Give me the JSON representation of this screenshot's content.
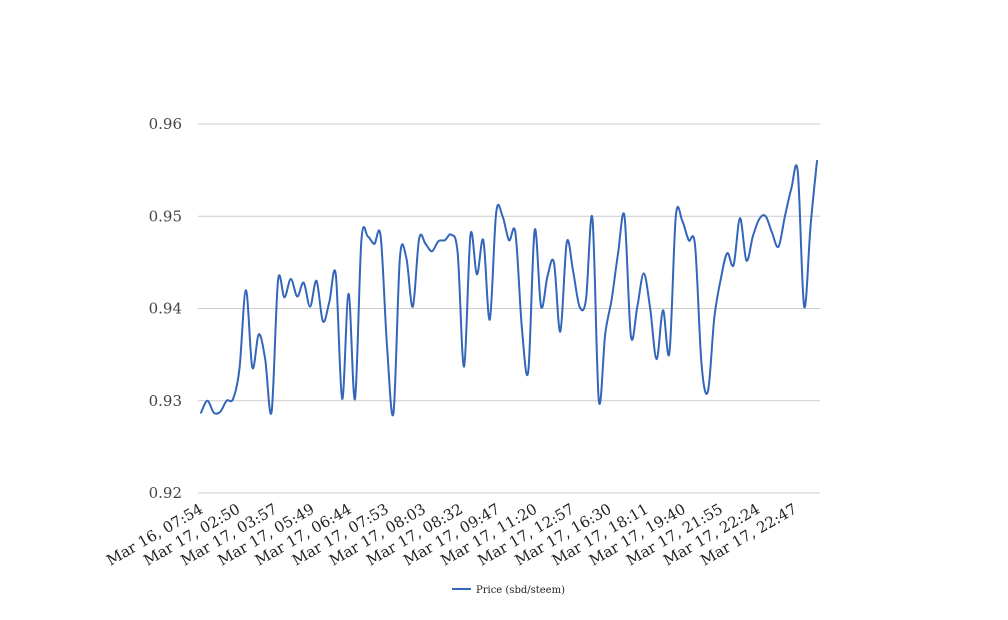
{
  "chart_data": {
    "type": "line",
    "title": "",
    "xlabel": "",
    "ylabel": "",
    "ylim": [
      0.92,
      0.96
    ],
    "yticks": [
      "0.92",
      "0.93",
      "0.94",
      "0.95",
      "0.96"
    ],
    "xtick_labels": [
      "Mar 16, 07:54",
      "Mar 17, 02:50",
      "Mar 17, 03:57",
      "Mar 17, 05:49",
      "Mar 17, 06:44",
      "Mar 17, 07:53",
      "Mar 17, 08:03",
      "Mar 17, 08:32",
      "Mar 17, 09:47",
      "Mar 17, 11:20",
      "Mar 17, 12:57",
      "Mar 17, 16:30",
      "Mar 17, 18:11",
      "Mar 17, 19:40",
      "Mar 17, 21:55",
      "Mar 17, 22:24",
      "Mar 17, 22:47"
    ],
    "grid": true,
    "legend_position": "bottom-center",
    "series": [
      {
        "name": "Price (sbd/steem)",
        "color": "#3366bb",
        "values": [
          0.9287,
          0.93,
          0.9287,
          0.9288,
          0.93,
          0.9302,
          0.9335,
          0.942,
          0.9336,
          0.9372,
          0.9345,
          0.9288,
          0.943,
          0.9412,
          0.9432,
          0.9413,
          0.9428,
          0.9402,
          0.943,
          0.9386,
          0.9407,
          0.9437,
          0.9302,
          0.9416,
          0.9302,
          0.9474,
          0.9478,
          0.947,
          0.9478,
          0.9358,
          0.9287,
          0.9455,
          0.9455,
          0.9402,
          0.9476,
          0.947,
          0.9462,
          0.9473,
          0.9474,
          0.948,
          0.946,
          0.9337,
          0.948,
          0.9437,
          0.9474,
          0.9388,
          0.9504,
          0.95,
          0.9474,
          0.9482,
          0.938,
          0.9332,
          0.9485,
          0.9402,
          0.9435,
          0.945,
          0.9375,
          0.9472,
          0.944,
          0.9402,
          0.941,
          0.9498,
          0.93,
          0.9373,
          0.941,
          0.946,
          0.95,
          0.937,
          0.9402,
          0.9438,
          0.94,
          0.9345,
          0.9398,
          0.9352,
          0.95,
          0.9495,
          0.9474,
          0.9468,
          0.934,
          0.931,
          0.939,
          0.9432,
          0.946,
          0.9447,
          0.9498,
          0.9452,
          0.9478,
          0.9497,
          0.95,
          0.9482,
          0.9467,
          0.95,
          0.953,
          0.9548,
          0.9402,
          0.949,
          0.956
        ]
      }
    ]
  }
}
